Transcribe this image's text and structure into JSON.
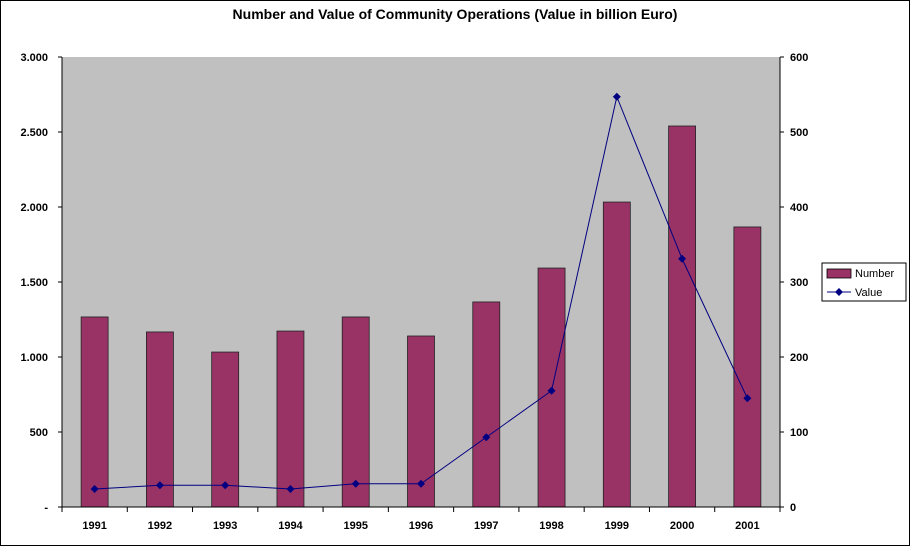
{
  "chart_data": {
    "type": "bar+line",
    "title": "Number and Value of Community Operations (Value in billion Euro)",
    "categories": [
      "1991",
      "1992",
      "1993",
      "1994",
      "1995",
      "1996",
      "1997",
      "1998",
      "1999",
      "2000",
      "2001"
    ],
    "series": [
      {
        "name": "Number",
        "type": "bar",
        "axis": "left",
        "color": "#993366",
        "values": [
          1267,
          1167,
          1033,
          1173,
          1267,
          1140,
          1367,
          1593,
          2033,
          2540,
          1867
        ]
      },
      {
        "name": "Value",
        "type": "line",
        "axis": "right",
        "color": "#000080",
        "values": [
          24,
          29,
          29,
          24,
          31,
          31,
          93,
          155,
          547,
          331,
          145
        ]
      }
    ],
    "y_left": {
      "ylim": [
        0,
        3000
      ],
      "ticks": [
        0,
        500,
        1000,
        1500,
        2000,
        2500,
        3000
      ],
      "tick_labels": [
        "-",
        "500",
        "1.000",
        "1.500",
        "2.000",
        "2.500",
        "3.000"
      ]
    },
    "y_right": {
      "ylim": [
        0,
        600
      ],
      "ticks": [
        0,
        100,
        200,
        300,
        400,
        500,
        600
      ],
      "tick_labels": [
        "0",
        "100",
        "200",
        "300",
        "400",
        "500",
        "600"
      ]
    },
    "plot_background": "#C0C0C0",
    "grid": false,
    "legend": "right"
  }
}
